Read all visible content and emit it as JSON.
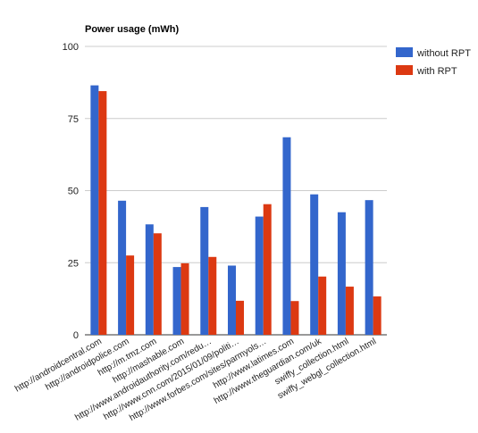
{
  "chart_data": {
    "type": "bar",
    "title": "Power usage (mWh)",
    "xlabel": "",
    "ylabel": "",
    "ylim": [
      0,
      100
    ],
    "yticks": [
      "0",
      "25",
      "50",
      "75",
      "100"
    ],
    "grid": true,
    "legend_position": "right",
    "categories": [
      "http://androidcentral.com",
      "http://androidpolice.com",
      "http://m.tmz.com",
      "http://mashable.com",
      "http://www.androidauthority.com/redu…",
      "http://www.cnn.com/2015/01/09/politi…",
      "http://www.forbes.com/sites/parmyols…",
      "http://www.latimes.com",
      "http://www.theguardian.com/uk",
      "swiffy_collection.html",
      "swiffy_webgl_collection.html"
    ],
    "series": [
      {
        "name": "without RPT",
        "color": "#3366cc",
        "values": [
          86.5,
          46.5,
          38.3,
          23.5,
          44.3,
          24.0,
          41.0,
          68.5,
          48.7,
          42.5,
          46.7
        ]
      },
      {
        "name": "with RPT",
        "color": "#dc3912",
        "values": [
          84.5,
          27.5,
          35.2,
          24.8,
          27.0,
          11.8,
          45.3,
          11.7,
          20.2,
          16.7,
          13.3
        ]
      }
    ]
  }
}
